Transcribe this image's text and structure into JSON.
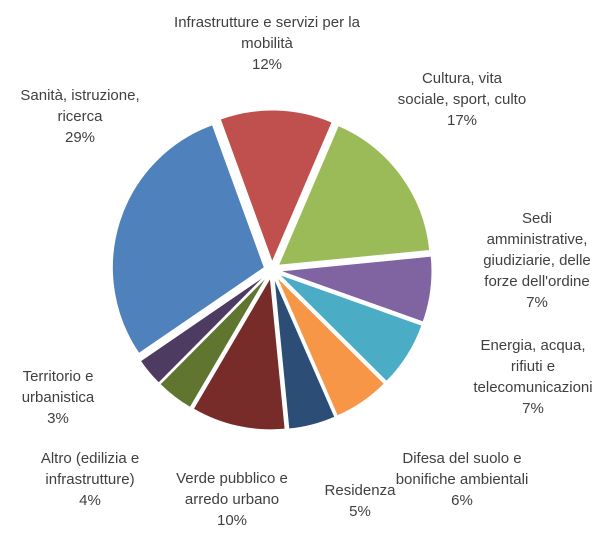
{
  "chart_data": {
    "type": "pie",
    "categories": [
      "Infrastrutture e servizi per la mobilità",
      "Cultura, vita sociale, sport, culto",
      "Sedi amministrative, giudiziarie, delle forze dell'ordine",
      "Energia, acqua, rifiuti e telecomunicazioni",
      "Difesa del suolo e bonifiche ambientali",
      "Residenza",
      "Verde pubblico e arredo urbano",
      "Altro (edilizia e infrastrutture)",
      "Territorio e urbanistica",
      "Sanità, istruzione, ricerca"
    ],
    "values": [
      12,
      17,
      7,
      7,
      6,
      5,
      10,
      4,
      3,
      29
    ],
    "value_labels": [
      "12%",
      "17%",
      "7%",
      "7%",
      "6%",
      "5%",
      "10%",
      "4%",
      "3%",
      "29%"
    ],
    "colors": [
      "#c0504d",
      "#9bbb59",
      "#8064a2",
      "#4bacc6",
      "#f79646",
      "#2c4d75",
      "#772c2a",
      "#5f7530",
      "#4d3b62",
      "#4f81bd"
    ]
  }
}
